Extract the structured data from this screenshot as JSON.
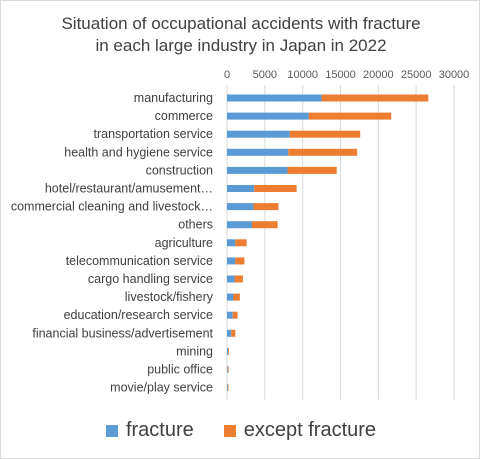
{
  "chart_data": {
    "type": "bar",
    "orientation": "horizontal",
    "stacked": true,
    "title_lines": [
      "Situation of occupational accidents with fracture",
      "in each large industry in Japan in 2022"
    ],
    "xlabel": "",
    "ylabel": "",
    "xlim": [
      0,
      30000
    ],
    "x_ticks": [
      "0",
      "5000",
      "10000",
      "15000",
      "20000",
      "25000",
      "30000"
    ],
    "x_axis_position": "top",
    "grid": true,
    "legend_position": "bottom",
    "categories": [
      "manufacturing",
      "commerce",
      "transportation service",
      "health and hygiene service",
      "construction",
      "hotel/restaurant/amusement…",
      "commercial cleaning and livestock…",
      "others",
      "agriculture",
      "telecommunication service",
      "cargo handling service",
      "livestock/fishery",
      "education/research service",
      "financial business/advertisement",
      "mining",
      "public office",
      "movie/play service"
    ],
    "series": [
      {
        "name": "fracture",
        "color": "#5b9bd5",
        "values": [
          12500,
          10800,
          8300,
          8100,
          8000,
          3600,
          3500,
          3300,
          1100,
          1100,
          1000,
          800,
          750,
          550,
          150,
          100,
          100
        ]
      },
      {
        "name": "except fracture",
        "color": "#ed7d31",
        "values": [
          14100,
          10900,
          9300,
          9100,
          6500,
          5600,
          3300,
          3400,
          1500,
          1200,
          1100,
          900,
          650,
          550,
          100,
          100,
          100
        ]
      }
    ]
  }
}
